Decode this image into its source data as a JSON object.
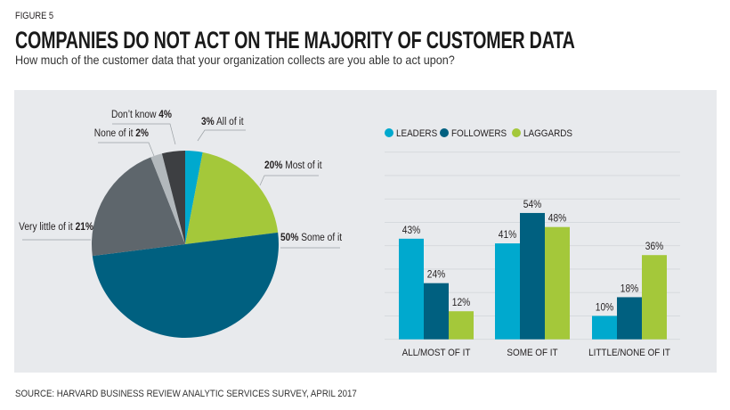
{
  "figure_label": "FIGURE 5",
  "title": "COMPANIES DO NOT ACT ON THE MAJORITY OF CUSTOMER DATA",
  "subtitle": "How much of the customer data that your organization collects are you able to act upon?",
  "source": "SOURCE: HARVARD BUSINESS REVIEW ANALYTIC SERVICES SURVEY, APRIL 2017",
  "chart_data": [
    {
      "type": "pie",
      "start": "top, clockwise",
      "slices": [
        {
          "label": "All of it",
          "value": 3,
          "value_label": "3%",
          "color": "#00a9ce"
        },
        {
          "label": "Most of it",
          "value": 20,
          "value_label": "20%",
          "color": "#a4c83a"
        },
        {
          "label": "Some of it",
          "value": 50,
          "value_label": "50%",
          "color": "#006080"
        },
        {
          "label": "Very little of it",
          "value": 21,
          "value_label": "21%",
          "color": "#5e666c"
        },
        {
          "label": "None of it",
          "value": 2,
          "value_label": "2%",
          "color": "#b2b8bc"
        },
        {
          "label": "Don’t know",
          "value": 4,
          "value_label": "4%",
          "color": "#3d3f42"
        }
      ]
    },
    {
      "type": "bar",
      "categories": [
        "ALL/MOST OF IT",
        "SOME OF IT",
        "LITTLE/NONE OF IT"
      ],
      "series": [
        {
          "name": "LEADERS",
          "values": [
            43,
            41,
            10
          ],
          "labels": [
            "43%",
            "41%",
            "10%"
          ],
          "color": "#00a9ce"
        },
        {
          "name": "FOLLOWERS",
          "values": [
            24,
            54,
            18
          ],
          "labels": [
            "24%",
            "54%",
            "18%"
          ],
          "color": "#006080"
        },
        {
          "name": "LAGGARDS",
          "values": [
            12,
            48,
            36
          ],
          "labels": [
            "12%",
            "48%",
            "36%"
          ],
          "color": "#a4c83a"
        }
      ],
      "ylim": [
        0,
        80
      ],
      "grid": true,
      "legend": "top-left"
    }
  ]
}
